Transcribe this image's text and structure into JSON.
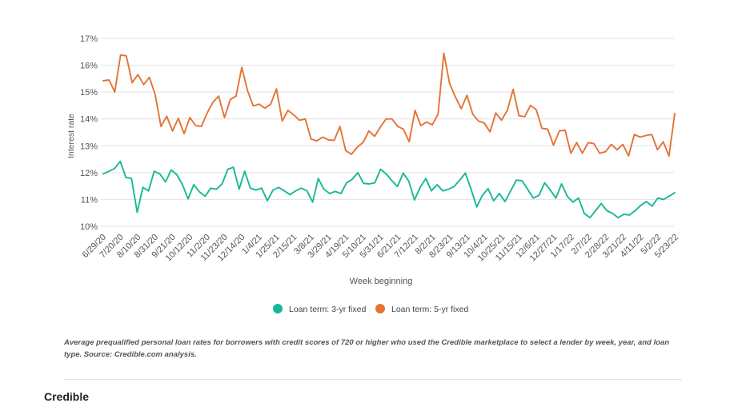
{
  "chart_data": {
    "type": "line",
    "title": "",
    "xlabel": "Week beginning",
    "ylabel": "Interest rate",
    "ylim": [
      10,
      17
    ],
    "yticks": [
      "17%",
      "16%",
      "15%",
      "14%",
      "13%",
      "12%",
      "11%",
      "10%"
    ],
    "grid": true,
    "legend_position": "bottom",
    "tick_labels": [
      "6/29/20",
      "7/20/20",
      "8/10/20",
      "8/31/20",
      "9/21/20",
      "10/12/20",
      "11/2/20",
      "11/23/20",
      "12/14/20",
      "1/4/21",
      "1/25/21",
      "2/15/21",
      "3/8/21",
      "3/29/21",
      "4/19/21",
      "5/10/21",
      "5/31/21",
      "6/21/21",
      "7/12/21",
      "8/2/21",
      "8/23/21",
      "9/13/21",
      "10/4/21",
      "10/25/21",
      "11/15/21",
      "12/6/21",
      "12/27/21",
      "1/17/22",
      "2/7/22",
      "2/28/22",
      "3/21/22",
      "4/11/22",
      "5/2/22",
      "5/23/22"
    ],
    "series": [
      {
        "name": "Loan term: 3-yr fixed",
        "color": "#17b897",
        "values": [
          11.95,
          12.05,
          12.15,
          12.42,
          11.82,
          11.78,
          10.52,
          11.45,
          11.32,
          12.05,
          11.95,
          11.65,
          12.1,
          11.92,
          11.55,
          11.02,
          11.55,
          11.28,
          11.12,
          11.42,
          11.38,
          11.58,
          12.12,
          12.2,
          11.38,
          12.05,
          11.42,
          11.35,
          11.42,
          10.95,
          11.35,
          11.45,
          11.32,
          11.18,
          11.32,
          11.42,
          11.32,
          10.9,
          11.78,
          11.38,
          11.22,
          11.3,
          11.22,
          11.62,
          11.75,
          12.0,
          11.6,
          11.58,
          11.62,
          12.12,
          11.95,
          11.7,
          11.48,
          11.98,
          11.68,
          10.98,
          11.45,
          11.78,
          11.32,
          11.55,
          11.32,
          11.38,
          11.48,
          11.72,
          11.98,
          11.38,
          10.72,
          11.15,
          11.4,
          10.95,
          11.22,
          10.92,
          11.32,
          11.72,
          11.7,
          11.38,
          11.05,
          11.15,
          11.62,
          11.35,
          11.05,
          11.58,
          11.12,
          10.9,
          11.05,
          10.48,
          10.32,
          10.58,
          10.85,
          10.58,
          10.48,
          10.32,
          10.45,
          10.42,
          10.58,
          10.78,
          10.92,
          10.75,
          11.05,
          11.0,
          11.12,
          11.25
        ]
      },
      {
        "name": "Loan term: 5-yr fixed",
        "color": "#e57334",
        "values": [
          15.42,
          15.45,
          15.0,
          16.38,
          16.35,
          15.35,
          15.65,
          15.28,
          15.55,
          14.9,
          13.72,
          14.1,
          13.55,
          14.02,
          13.45,
          14.05,
          13.75,
          13.72,
          14.22,
          14.62,
          14.85,
          14.05,
          14.72,
          14.85,
          15.92,
          15.05,
          14.48,
          14.55,
          14.4,
          14.55,
          15.12,
          13.92,
          14.32,
          14.15,
          13.95,
          14.0,
          13.25,
          13.18,
          13.32,
          13.22,
          13.2,
          13.72,
          12.82,
          12.68,
          12.95,
          13.12,
          13.55,
          13.35,
          13.7,
          14.0,
          14.0,
          13.72,
          13.62,
          13.15,
          14.32,
          13.75,
          13.88,
          13.78,
          14.18,
          16.45,
          15.32,
          14.82,
          14.38,
          14.88,
          14.18,
          13.92,
          13.85,
          13.52,
          14.22,
          13.95,
          14.32,
          15.1,
          14.12,
          14.08,
          14.5,
          14.35,
          13.65,
          13.62,
          13.02,
          13.55,
          13.58,
          12.72,
          13.12,
          12.72,
          13.12,
          13.08,
          12.72,
          12.78,
          13.05,
          12.85,
          13.05,
          12.62,
          13.42,
          13.32,
          13.38,
          13.42,
          12.85,
          13.15,
          12.62,
          14.2
        ]
      }
    ]
  },
  "caption": "Average prequalified personal loan rates for borrowers with credit scores of 720 or higher who used the Credible marketplace to select a lender by week, year, and loan type. Source: Credible.com analysis.",
  "brand": "Credible"
}
